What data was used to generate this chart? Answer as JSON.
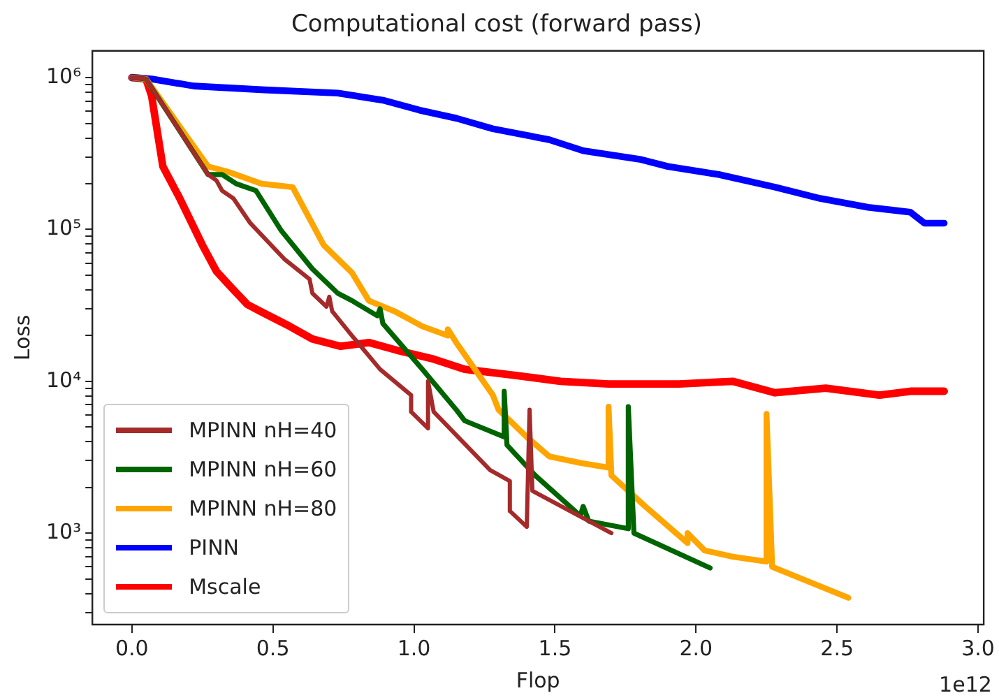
{
  "chart_data": {
    "type": "line",
    "title": "Computational cost (forward pass)",
    "xlabel": "Flop",
    "ylabel": "Loss",
    "log": "y",
    "grid": false,
    "legend": "bottom left",
    "line_style": "solid",
    "marker": "none",
    "xlim": [
      -0.14,
      3.02
    ],
    "xticks": [
      {
        "value": 0,
        "label": "0.0"
      },
      {
        "value": 0.5,
        "label": "0.5"
      },
      {
        "value": 1,
        "label": "1.0"
      },
      {
        "value": 1.5,
        "label": "1.5"
      },
      {
        "value": 2,
        "label": "2.0"
      },
      {
        "value": 2.5,
        "label": "2.5"
      },
      {
        "value": 3,
        "label": "3.0"
      }
    ],
    "ylim": [
      250,
      1500000
    ],
    "yticks": [
      {
        "value": 300,
        "label": null
      },
      {
        "value": 400,
        "label": null
      },
      {
        "value": 500,
        "label": null
      },
      {
        "value": 600,
        "label": null
      },
      {
        "value": 700,
        "label": null
      },
      {
        "value": 800,
        "label": null
      },
      {
        "value": 900,
        "label": null
      },
      {
        "value": 1000,
        "label": "10³"
      },
      {
        "value": 2000,
        "label": null
      },
      {
        "value": 3000,
        "label": null
      },
      {
        "value": 4000,
        "label": null
      },
      {
        "value": 5000,
        "label": null
      },
      {
        "value": 6000,
        "label": null
      },
      {
        "value": 7000,
        "label": null
      },
      {
        "value": 8000,
        "label": null
      },
      {
        "value": 9000,
        "label": null
      },
      {
        "value": 10000,
        "label": "10⁴"
      },
      {
        "value": 20000,
        "label": null
      },
      {
        "value": 30000,
        "label": null
      },
      {
        "value": 40000,
        "label": null
      },
      {
        "value": 50000,
        "label": null
      },
      {
        "value": 60000,
        "label": null
      },
      {
        "value": 70000,
        "label": null
      },
      {
        "value": 80000,
        "label": null
      },
      {
        "value": 90000,
        "label": null
      },
      {
        "value": 100000,
        "label": "10⁵"
      },
      {
        "value": 200000,
        "label": null
      },
      {
        "value": 300000,
        "label": null
      },
      {
        "value": 400000,
        "label": null
      },
      {
        "value": 500000,
        "label": null
      },
      {
        "value": 600000,
        "label": null
      },
      {
        "value": 700000,
        "label": null
      },
      {
        "value": 800000,
        "label": null
      },
      {
        "value": 900000,
        "label": null
      },
      {
        "value": 1000000,
        "label": "10⁶"
      }
    ],
    "annotations": [
      "1e12"
    ],
    "series": [
      {
        "name": "MPINN nH=40",
        "color": "#a52a2a",
        "x": [
          0,
          0.05,
          0.27,
          0.3,
          0.32,
          0.36,
          0.42,
          0.54,
          0.63,
          0.64,
          0.69,
          0.7,
          0.71,
          0.78,
          0.88,
          0.99,
          0.99,
          1.05,
          1.05,
          1.07,
          1.27,
          1.34,
          1.34,
          1.4,
          1.41,
          1.42,
          1.7
        ],
        "values": [
          1000000,
          980000,
          230000,
          210000,
          180000,
          160000,
          110000,
          64000,
          47000,
          38000,
          31000,
          36000,
          29000,
          20000,
          12000,
          8100,
          6300,
          4900,
          10000,
          6300,
          2600,
          2200,
          1400,
          1100,
          6500,
          1900,
          1000
        ]
      },
      {
        "name": "MPINN nH=60",
        "color": "#006400",
        "x": [
          0,
          0.05,
          0.27,
          0.32,
          0.37,
          0.44,
          0.53,
          0.64,
          0.73,
          0.78,
          0.87,
          0.88,
          0.89,
          1.03,
          1.15,
          1.18,
          1.32,
          1.32,
          1.33,
          1.43,
          1.59,
          1.6,
          1.62,
          1.76,
          1.76,
          1.78,
          2.05
        ],
        "values": [
          1000000,
          980000,
          230000,
          230000,
          200000,
          180000,
          98000,
          55000,
          38000,
          34000,
          27000,
          30000,
          24000,
          12000,
          6500,
          5500,
          4300,
          8600,
          3800,
          2400,
          1300,
          1500,
          1200,
          1070,
          6800,
          1000,
          590
        ]
      },
      {
        "name": "MPINN nH=80",
        "color": "#ffa500",
        "x": [
          0,
          0.05,
          0.27,
          0.34,
          0.46,
          0.57,
          0.68,
          0.78,
          0.84,
          0.93,
          1.03,
          1.12,
          1.12,
          1.15,
          1.28,
          1.3,
          1.4,
          1.48,
          1.59,
          1.69,
          1.69,
          1.7,
          1.82,
          1.97,
          1.97,
          2.03,
          2.13,
          2.25,
          2.25,
          2.27,
          2.54
        ],
        "values": [
          1000000,
          980000,
          260000,
          240000,
          200000,
          190000,
          79000,
          52000,
          34000,
          29000,
          23000,
          20000,
          22000,
          18000,
          8100,
          6500,
          4300,
          3200,
          2900,
          2700,
          6800,
          2400,
          1500,
          860,
          1000,
          770,
          700,
          650,
          6100,
          600,
          375
        ]
      },
      {
        "name": "PINN",
        "color": "#0000ff",
        "x": [
          0,
          0.07,
          0.22,
          0.47,
          0.73,
          0.89,
          1.02,
          1.15,
          1.28,
          1.48,
          1.6,
          1.8,
          1.9,
          2.08,
          2.28,
          2.44,
          2.61,
          2.76,
          2.81,
          2.88
        ],
        "values": [
          1000000,
          980000,
          880000,
          830000,
          790000,
          710000,
          610000,
          540000,
          460000,
          390000,
          330000,
          290000,
          260000,
          230000,
          190000,
          160000,
          140000,
          130000,
          110000,
          110000
        ]
      },
      {
        "name": "Mscale",
        "color": "#ff0000",
        "x": [
          0,
          0.05,
          0.07,
          0.11,
          0.17,
          0.25,
          0.3,
          0.35,
          0.41,
          0.47,
          0.56,
          0.64,
          0.74,
          0.84,
          0.94,
          1.07,
          1.18,
          1.35,
          1.52,
          1.69,
          1.94,
          2.13,
          2.28,
          2.46,
          2.65,
          2.76,
          2.88
        ],
        "values": [
          1000000,
          980000,
          760000,
          260000,
          160000,
          79000,
          53000,
          42000,
          32000,
          28000,
          23000,
          19000,
          17000,
          18000,
          16000,
          14000,
          12000,
          11000,
          10000,
          9600,
          9600,
          10000,
          8400,
          9000,
          8100,
          8600,
          8600
        ]
      }
    ]
  }
}
